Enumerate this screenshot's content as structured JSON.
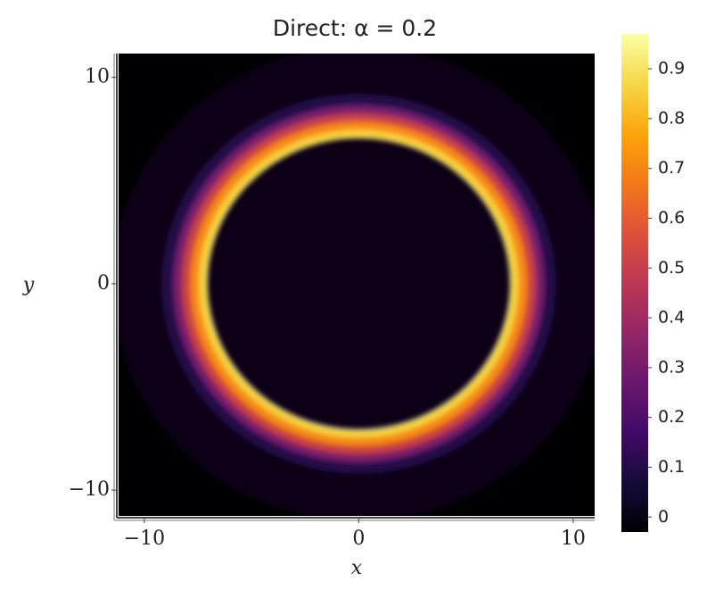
{
  "chart_data": {
    "type": "heatmap",
    "title": "Direct: α = 0.2",
    "xlabel": "x",
    "ylabel": "y",
    "xlim": [
      -11.2,
      11
    ],
    "ylim": [
      -11.25,
      11.15
    ],
    "xticks": [
      {
        "value": -10,
        "label": "−10"
      },
      0,
      10
    ],
    "yticks": [
      {
        "value": -10,
        "label": "−10"
      },
      0,
      10
    ],
    "colormap": "inferno",
    "clim": [
      -0.03,
      0.97
    ],
    "cticks": [
      0,
      0.1,
      0.2,
      0.3,
      0.4,
      0.5,
      0.6,
      0.7,
      0.8,
      0.9
    ],
    "profile": {
      "r": [
        0,
        7.05,
        7.1,
        7.5,
        7.9,
        8.3,
        8.7,
        9.2,
        11.5
      ],
      "values": [
        0,
        0,
        0.95,
        0.85,
        0.7,
        0.5,
        0.3,
        0.1,
        0
      ]
    }
  }
}
